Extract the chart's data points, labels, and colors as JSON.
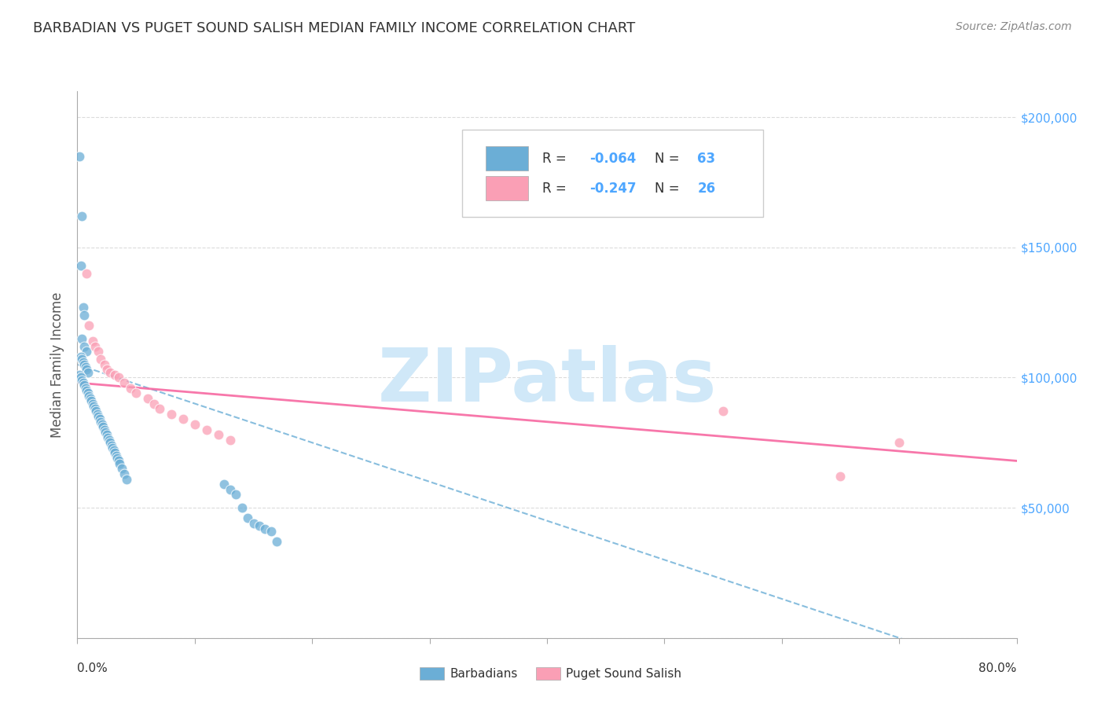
{
  "title": "BARBADIAN VS PUGET SOUND SALISH MEDIAN FAMILY INCOME CORRELATION CHART",
  "source": "Source: ZipAtlas.com",
  "ylabel": "Median Family Income",
  "x_range": [
    0,
    0.8
  ],
  "y_range": [
    0,
    210000
  ],
  "watermark": "ZIPatlas",
  "legend_r1": "-0.064",
  "legend_n1": "63",
  "legend_r2": "-0.247",
  "legend_n2": "26",
  "blue_scatter_x": [
    0.002,
    0.004,
    0.003,
    0.005,
    0.006,
    0.004,
    0.006,
    0.008,
    0.003,
    0.004,
    0.005,
    0.006,
    0.007,
    0.008,
    0.009,
    0.002,
    0.003,
    0.004,
    0.005,
    0.006,
    0.007,
    0.008,
    0.009,
    0.01,
    0.011,
    0.012,
    0.013,
    0.014,
    0.015,
    0.016,
    0.017,
    0.018,
    0.019,
    0.02,
    0.021,
    0.022,
    0.023,
    0.024,
    0.025,
    0.026,
    0.027,
    0.028,
    0.029,
    0.03,
    0.031,
    0.032,
    0.033,
    0.034,
    0.035,
    0.036,
    0.038,
    0.04,
    0.042,
    0.125,
    0.13,
    0.135,
    0.14,
    0.145,
    0.15,
    0.155,
    0.16,
    0.165,
    0.17
  ],
  "blue_scatter_y": [
    185000,
    162000,
    143000,
    127000,
    124000,
    115000,
    112000,
    110000,
    108000,
    107000,
    106000,
    105000,
    104000,
    103000,
    102000,
    101000,
    100000,
    99000,
    98000,
    97000,
    96000,
    95000,
    94000,
    93000,
    92000,
    91000,
    90000,
    89000,
    88000,
    87000,
    86000,
    85000,
    84000,
    83000,
    82000,
    81000,
    80000,
    79000,
    78000,
    77000,
    76000,
    75000,
    74000,
    73000,
    72000,
    71000,
    70000,
    69000,
    68000,
    67000,
    65000,
    63000,
    61000,
    59000,
    57000,
    55000,
    50000,
    46000,
    44000,
    43000,
    42000,
    41000,
    37000
  ],
  "pink_scatter_x": [
    0.008,
    0.01,
    0.013,
    0.015,
    0.018,
    0.02,
    0.023,
    0.025,
    0.028,
    0.032,
    0.035,
    0.04,
    0.045,
    0.05,
    0.06,
    0.065,
    0.07,
    0.08,
    0.09,
    0.1,
    0.11,
    0.12,
    0.13,
    0.55,
    0.65,
    0.7
  ],
  "pink_scatter_y": [
    140000,
    120000,
    114000,
    112000,
    110000,
    107000,
    105000,
    103000,
    102000,
    101000,
    100000,
    98000,
    96000,
    94000,
    92000,
    90000,
    88000,
    86000,
    84000,
    82000,
    80000,
    78000,
    76000,
    87000,
    62000,
    75000
  ],
  "blue_line_x": [
    0.0,
    0.8
  ],
  "blue_line_y": [
    105000,
    -15000
  ],
  "pink_line_x": [
    0.0,
    0.8
  ],
  "pink_line_y": [
    98000,
    68000
  ],
  "dot_color_blue": "#6baed6",
  "dot_color_pink": "#fa9fb5",
  "line_color_blue": "#6baed6",
  "line_color_pink": "#f768a1",
  "bg_color": "#ffffff",
  "grid_color": "#cccccc",
  "title_color": "#333333",
  "axis_label_color": "#555555",
  "right_tick_color": "#4da6ff",
  "watermark_color": "#d0e8f8",
  "legend_text_color": "#333333",
  "legend_value_color": "#4da6ff"
}
